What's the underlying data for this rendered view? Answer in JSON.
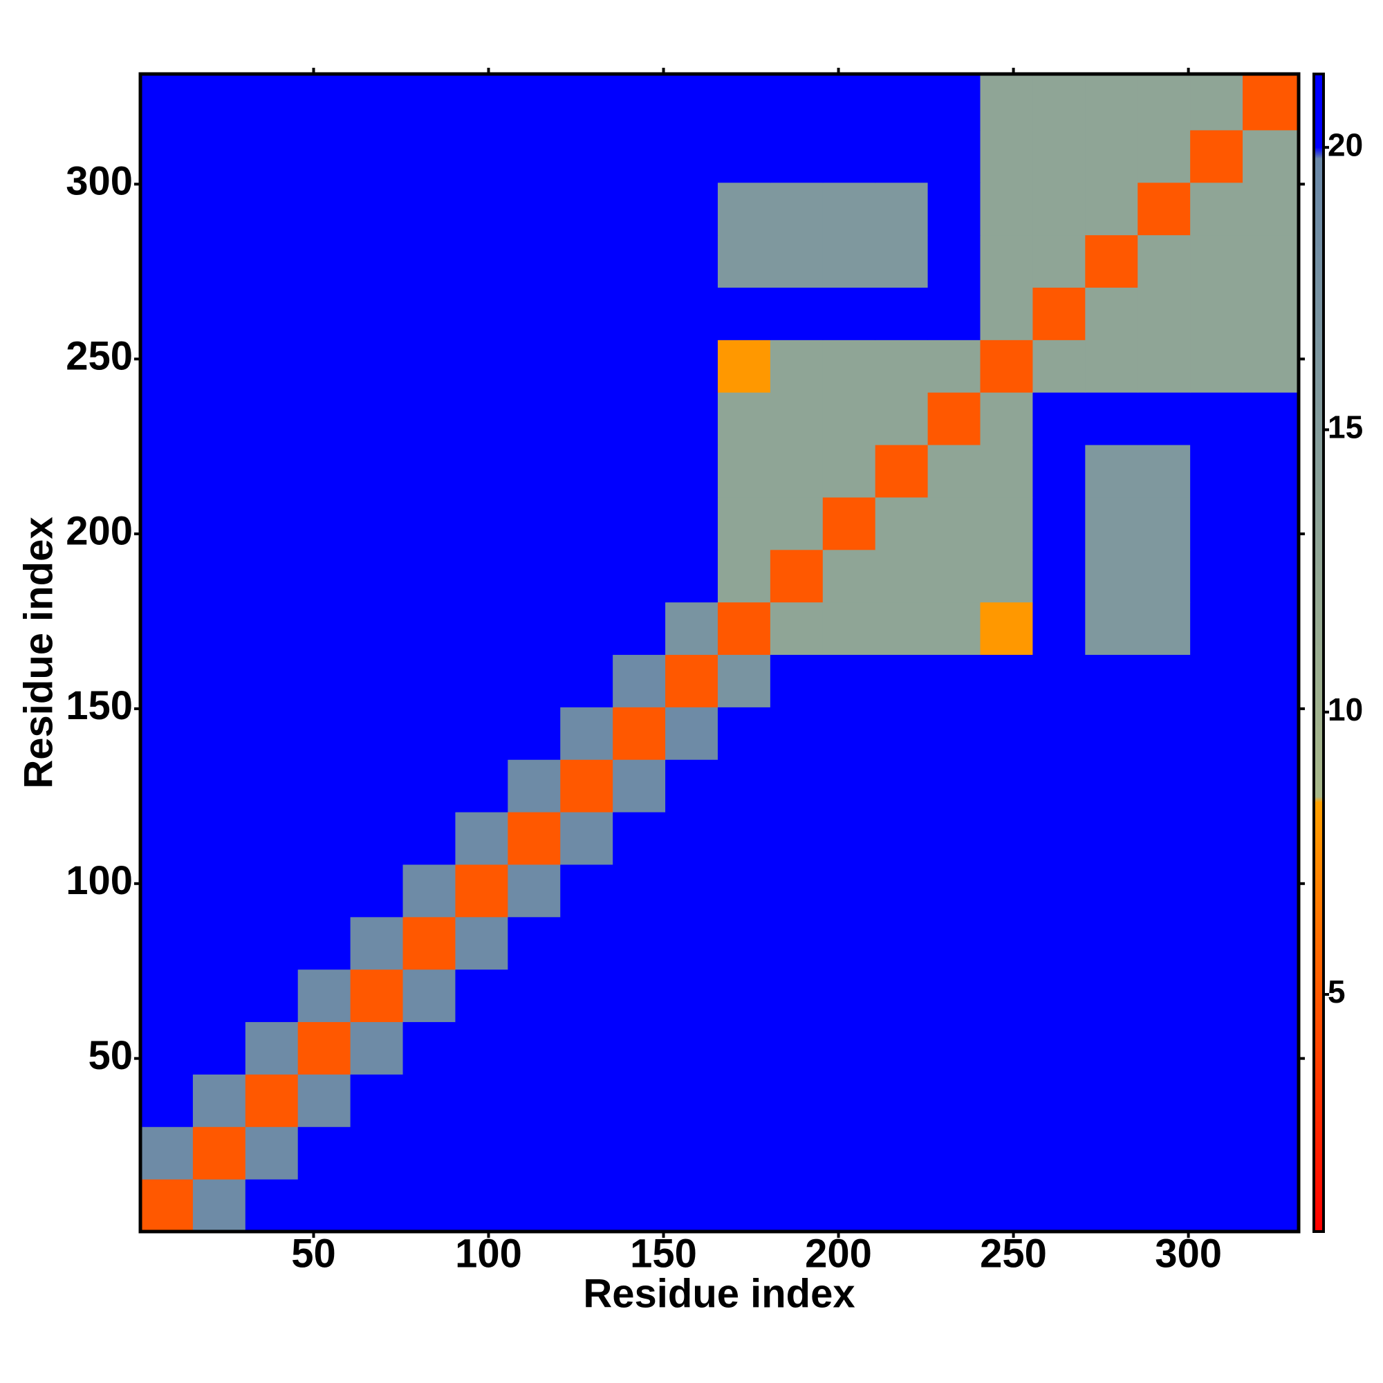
{
  "chart_data": {
    "type": "heatmap",
    "xlabel": "Residue index",
    "ylabel": "Residue index",
    "x": [
      8,
      23,
      38,
      53,
      68,
      83,
      98,
      113,
      128,
      143,
      158,
      173,
      188,
      203,
      218,
      233,
      248,
      263,
      278,
      293,
      308,
      323
    ],
    "y": [
      8,
      23,
      38,
      53,
      68,
      83,
      98,
      113,
      128,
      143,
      158,
      173,
      188,
      203,
      218,
      233,
      248,
      263,
      278,
      293,
      308,
      323
    ],
    "xlim": [
      0.5,
      331.5
    ],
    "ylim": [
      0.5,
      331.5
    ],
    "xticks": [
      50,
      100,
      150,
      200,
      250,
      300
    ],
    "yticks": [
      50,
      100,
      150,
      200,
      250,
      300
    ],
    "clim": [
      0.8,
      21.3
    ],
    "cticks": [
      5,
      10,
      15,
      20
    ],
    "colorscale": [
      [
        0.8,
        "#ff0000"
      ],
      [
        8.4,
        "#ffa000"
      ],
      [
        8.5,
        "#a8b88a"
      ],
      [
        19.8,
        "#6a88a8"
      ],
      [
        20,
        "#0000ff"
      ],
      [
        21.3,
        "#0000ff"
      ]
    ],
    "values": [
      [
        5,
        19,
        21,
        21,
        21,
        21,
        21,
        21,
        21,
        21,
        21,
        21,
        21,
        21,
        21,
        21,
        21,
        21,
        21,
        21,
        21,
        21
      ],
      [
        19,
        5,
        19,
        21,
        21,
        21,
        21,
        21,
        21,
        21,
        21,
        21,
        21,
        21,
        21,
        21,
        21,
        21,
        21,
        21,
        21,
        21
      ],
      [
        21,
        19,
        5,
        19,
        21,
        21,
        21,
        21,
        21,
        21,
        21,
        21,
        21,
        21,
        21,
        21,
        21,
        21,
        21,
        21,
        21,
        21
      ],
      [
        21,
        21,
        19,
        5,
        19,
        21,
        21,
        21,
        21,
        21,
        21,
        21,
        21,
        21,
        21,
        21,
        21,
        21,
        21,
        21,
        21,
        21
      ],
      [
        21,
        21,
        21,
        19,
        5,
        19,
        21,
        21,
        21,
        21,
        21,
        21,
        21,
        21,
        21,
        21,
        21,
        21,
        21,
        21,
        21,
        21
      ],
      [
        21,
        21,
        21,
        21,
        19,
        5,
        19,
        21,
        21,
        21,
        21,
        21,
        21,
        21,
        21,
        21,
        21,
        21,
        21,
        21,
        21,
        21
      ],
      [
        21,
        21,
        21,
        21,
        21,
        19,
        5,
        19,
        21,
        21,
        21,
        21,
        21,
        21,
        21,
        21,
        21,
        21,
        21,
        21,
        21,
        21
      ],
      [
        21,
        21,
        21,
        21,
        21,
        21,
        19,
        5,
        19,
        21,
        21,
        21,
        21,
        21,
        21,
        21,
        21,
        21,
        21,
        21,
        21,
        21
      ],
      [
        21,
        21,
        21,
        21,
        21,
        21,
        21,
        19,
        5,
        19,
        21,
        21,
        21,
        21,
        21,
        21,
        21,
        21,
        21,
        21,
        21,
        21
      ],
      [
        21,
        21,
        21,
        21,
        21,
        21,
        21,
        21,
        19,
        5,
        19,
        21,
        21,
        21,
        21,
        21,
        21,
        21,
        21,
        21,
        21,
        21
      ],
      [
        21,
        21,
        21,
        21,
        21,
        21,
        21,
        21,
        21,
        19,
        5,
        17,
        21,
        21,
        21,
        21,
        21,
        21,
        21,
        21,
        21,
        21
      ],
      [
        21,
        21,
        21,
        21,
        21,
        21,
        21,
        21,
        21,
        21,
        17,
        5,
        13,
        13,
        13,
        13,
        8,
        21,
        16,
        16,
        21,
        21
      ],
      [
        21,
        21,
        21,
        21,
        21,
        21,
        21,
        21,
        21,
        21,
        21,
        13,
        5,
        13,
        13,
        13,
        13,
        21,
        16,
        16,
        21,
        21
      ],
      [
        21,
        21,
        21,
        21,
        21,
        21,
        21,
        21,
        21,
        21,
        21,
        13,
        13,
        5,
        13,
        13,
        13,
        21,
        16,
        16,
        21,
        21
      ],
      [
        21,
        21,
        21,
        21,
        21,
        21,
        21,
        21,
        21,
        21,
        21,
        13,
        13,
        13,
        5,
        13,
        13,
        21,
        16,
        16,
        21,
        21
      ],
      [
        21,
        21,
        21,
        21,
        21,
        21,
        21,
        21,
        21,
        21,
        21,
        13,
        13,
        13,
        13,
        5,
        13,
        21,
        21,
        21,
        21,
        21
      ],
      [
        21,
        21,
        21,
        21,
        21,
        21,
        21,
        21,
        21,
        21,
        21,
        8,
        13,
        13,
        13,
        13,
        5,
        13,
        13,
        13,
        13,
        13
      ],
      [
        21,
        21,
        21,
        21,
        21,
        21,
        21,
        21,
        21,
        21,
        21,
        21,
        21,
        21,
        21,
        21,
        13,
        5,
        13,
        13,
        13,
        13
      ],
      [
        21,
        21,
        21,
        21,
        21,
        21,
        21,
        21,
        21,
        21,
        21,
        16,
        16,
        16,
        16,
        21,
        13,
        13,
        5,
        13,
        13,
        13
      ],
      [
        21,
        21,
        21,
        21,
        21,
        21,
        21,
        21,
        21,
        21,
        21,
        16,
        16,
        16,
        16,
        21,
        13,
        13,
        13,
        5,
        13,
        13
      ],
      [
        21,
        21,
        21,
        21,
        21,
        21,
        21,
        21,
        21,
        21,
        21,
        21,
        21,
        21,
        21,
        21,
        13,
        13,
        13,
        13,
        5,
        13
      ],
      [
        21,
        21,
        21,
        21,
        21,
        21,
        21,
        21,
        21,
        21,
        21,
        21,
        21,
        21,
        21,
        21,
        13,
        13,
        13,
        13,
        13,
        5
      ]
    ]
  }
}
